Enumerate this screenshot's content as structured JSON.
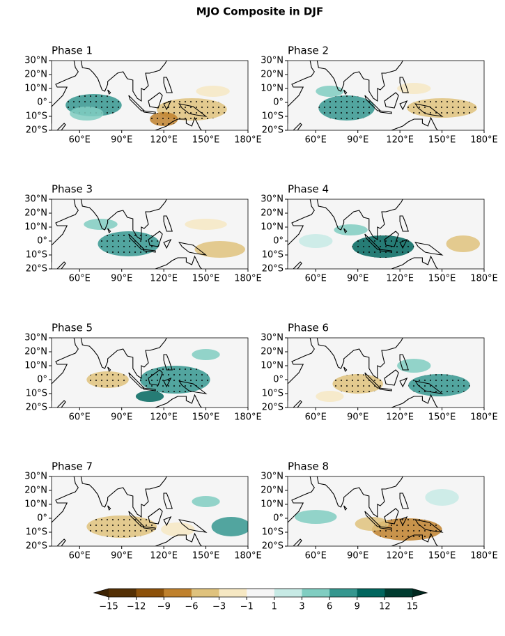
{
  "title": "MJO Composite in DJF",
  "panels": [
    {
      "title": "Phase 1"
    },
    {
      "title": "Phase 2"
    },
    {
      "title": "Phase 3"
    },
    {
      "title": "Phase 4"
    },
    {
      "title": "Phase 5"
    },
    {
      "title": "Phase 6"
    },
    {
      "title": "Phase 7"
    },
    {
      "title": "Phase 8"
    }
  ],
  "xlim": [
    40,
    180
  ],
  "xticks": [
    {
      "value": 60,
      "label": "60°E"
    },
    {
      "value": 90,
      "label": "90°E"
    },
    {
      "value": 120,
      "label": "120°E"
    },
    {
      "value": 150,
      "label": "150°E"
    },
    {
      "value": 180,
      "label": "180°E"
    }
  ],
  "ylim": [
    -20,
    30
  ],
  "yticks": [
    {
      "value": 30,
      "label": "30°N"
    },
    {
      "value": 20,
      "label": "20°N"
    },
    {
      "value": 10,
      "label": "10°N"
    },
    {
      "value": 0,
      "label": "0°"
    },
    {
      "value": -10,
      "label": "10°S"
    },
    {
      "value": -20,
      "label": "20°S"
    }
  ],
  "colorbar": {
    "ticks": [
      {
        "value": -15,
        "label": "−15"
      },
      {
        "value": -12,
        "label": "−12"
      },
      {
        "value": -9,
        "label": "−9"
      },
      {
        "value": -6,
        "label": "−6"
      },
      {
        "value": -3,
        "label": "−3"
      },
      {
        "value": -1,
        "label": "−1"
      },
      1,
      3,
      6,
      9,
      12,
      15
    ],
    "colors": [
      "#543005",
      "#8c510a",
      "#bf812d",
      "#dfc27d",
      "#f6e8c3",
      "#f5f5f5",
      "#c7eae5",
      "#80cdc1",
      "#35978f",
      "#01665e",
      "#003c30"
    ],
    "under": "#3d2304",
    "over": "#00281f"
  }
}
